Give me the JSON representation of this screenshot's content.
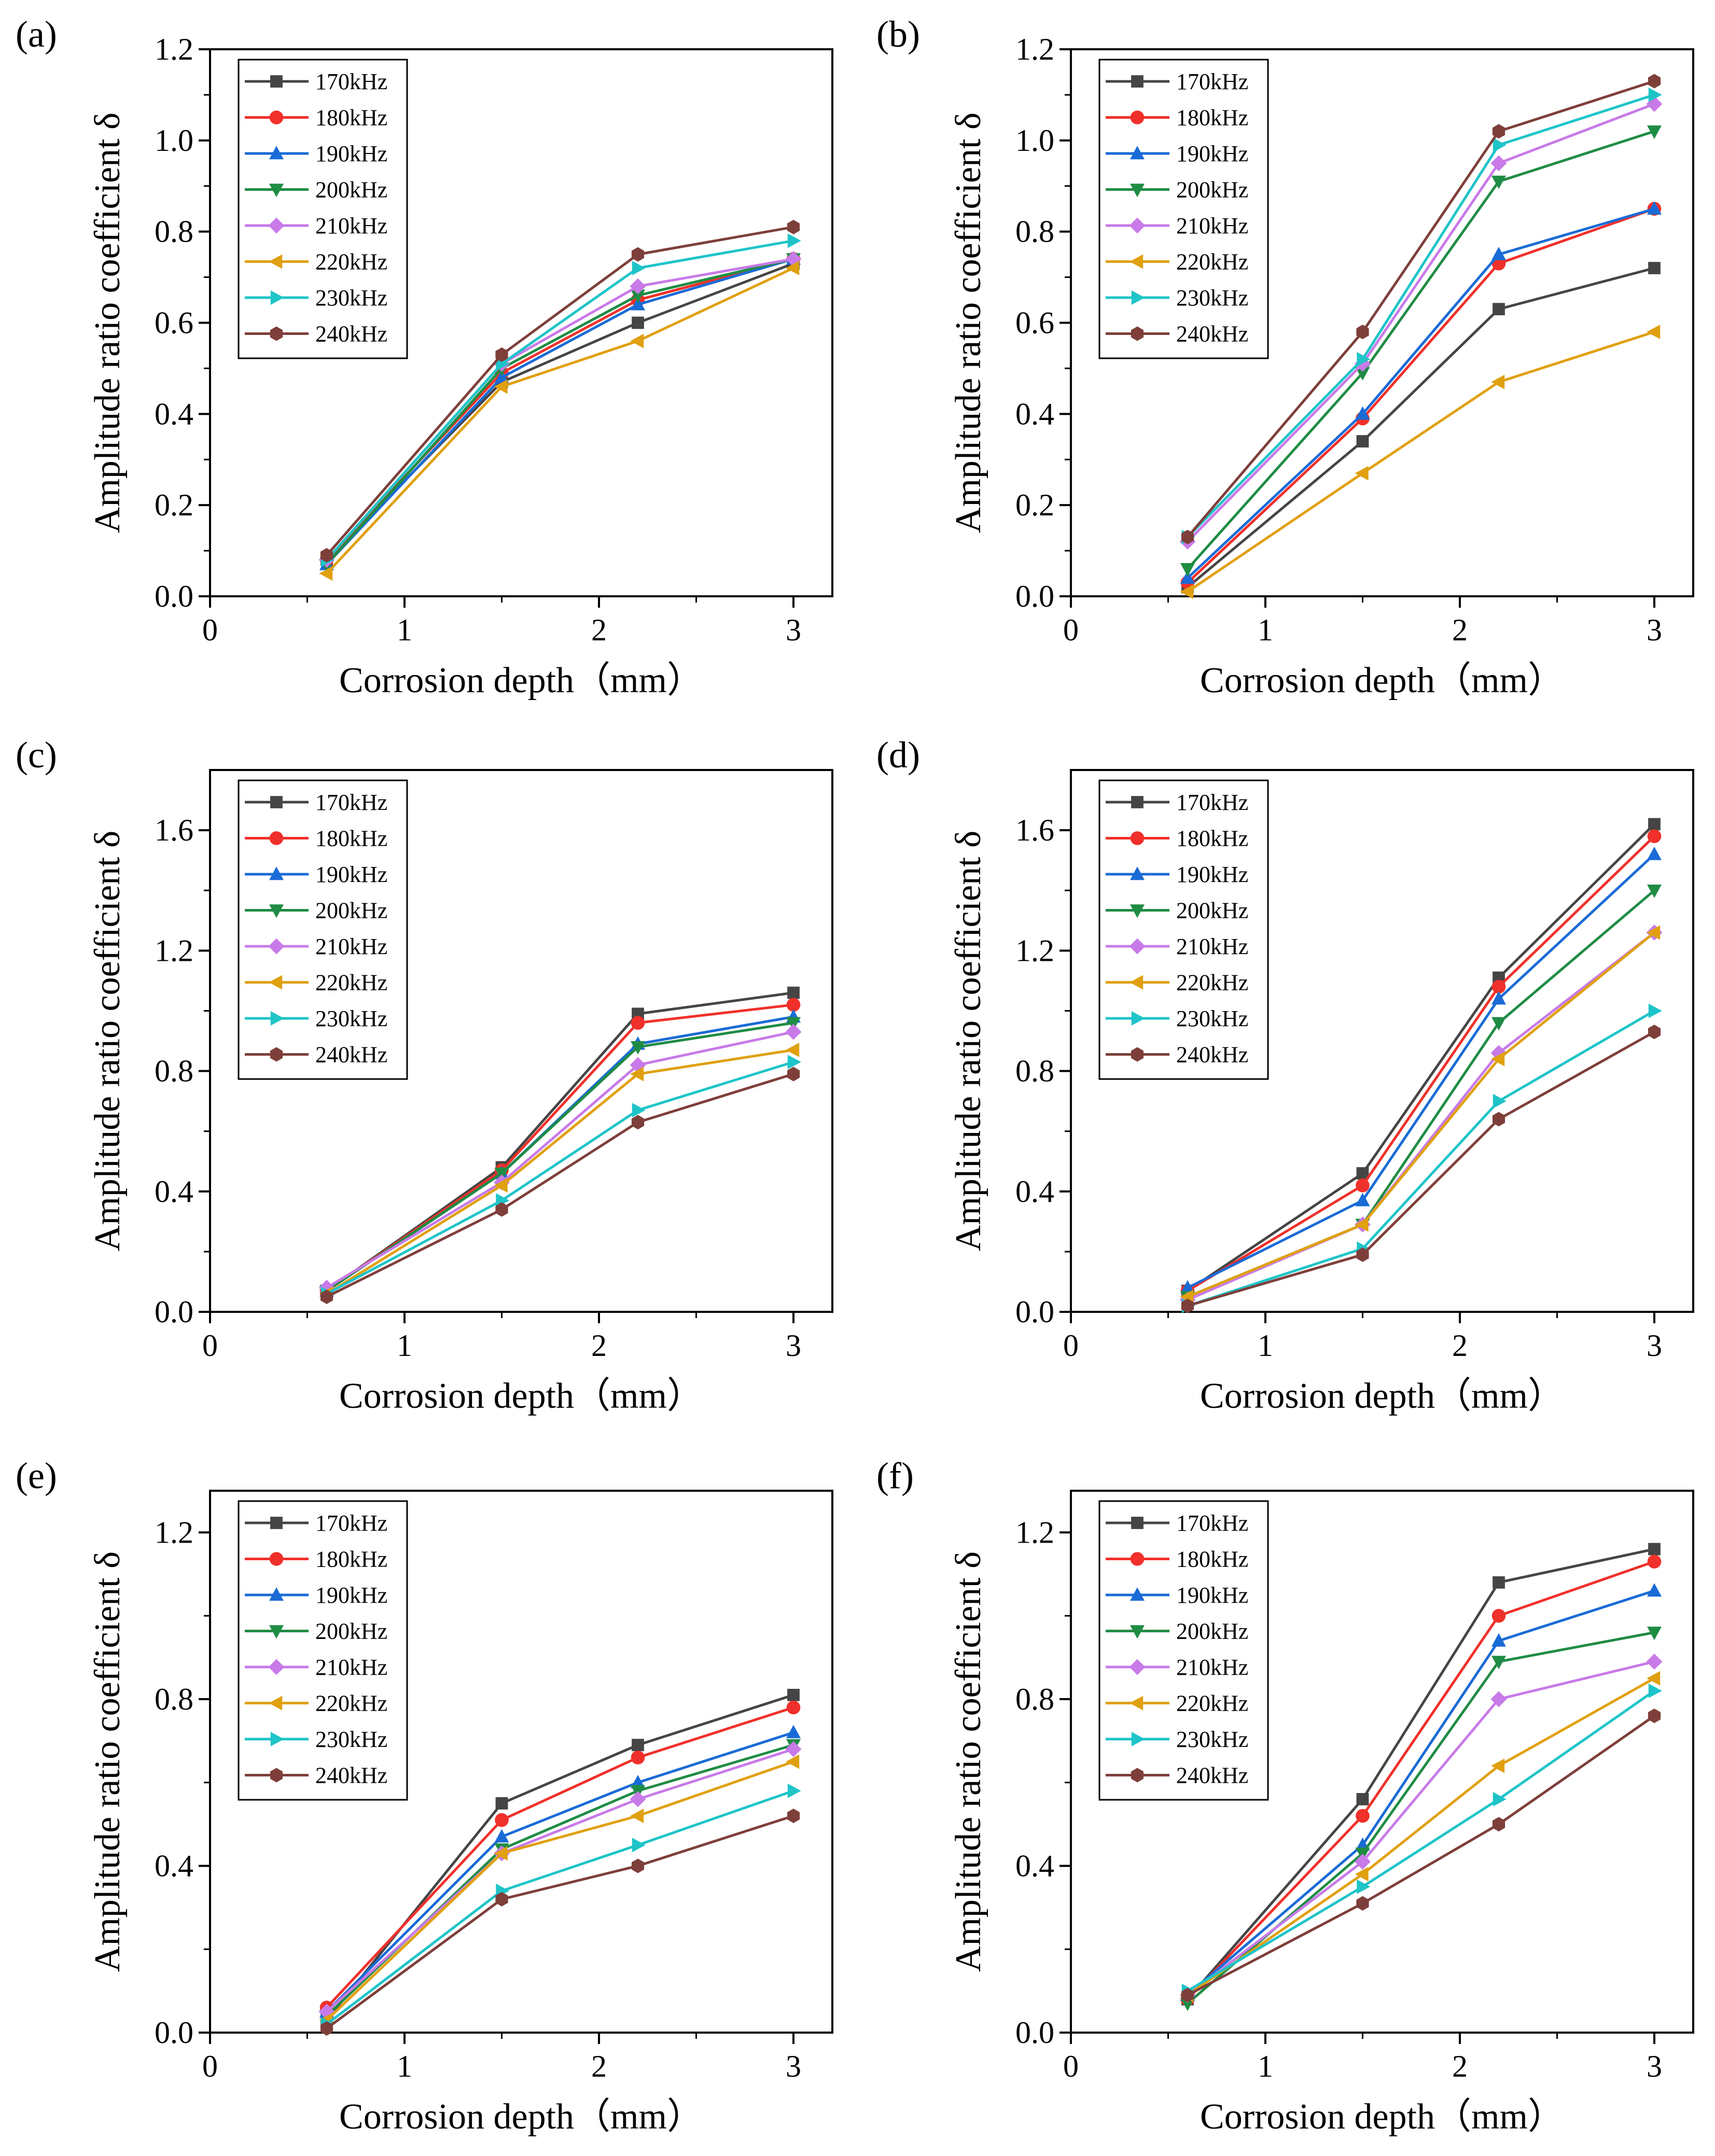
{
  "figure": {
    "xlabel": "Corrosion depth（mm）",
    "ylabel": "Amplitude ratio coefficient δ"
  },
  "series_colors": [
    "#454545",
    "#f0302a",
    "#1a6bd6",
    "#1f8c44",
    "#c87ae8",
    "#e0a010",
    "#1ec4c8",
    "#7e3f3a"
  ],
  "series_markers": [
    "square",
    "circle",
    "triangle-up",
    "triangle-down",
    "diamond",
    "triangle-left",
    "triangle-right",
    "hexagon"
  ],
  "legend_labels": [
    "170kHz",
    "180kHz",
    "190kHz",
    "200kHz",
    "210kHz",
    "220kHz",
    "230kHz",
    "240kHz"
  ],
  "chart_data": [
    {
      "panel": "(a)",
      "type": "line",
      "x": [
        0.6,
        1.5,
        2.2,
        3.0
      ],
      "xlim": [
        0,
        3.2
      ],
      "xticks": [
        "0",
        "1",
        "2",
        "3"
      ],
      "xtick_values": [
        0,
        1,
        2,
        3
      ],
      "ylim": [
        0,
        1.2
      ],
      "yticks": [
        "0.0",
        "0.2",
        "0.4",
        "0.6",
        "0.8",
        "1.0",
        "1.2"
      ],
      "ytick_values": [
        0,
        0.2,
        0.4,
        0.6,
        0.8,
        1.0,
        1.2
      ],
      "xlabel": "Corrosion depth（mm）",
      "ylabel": "Amplitude ratio coefficient δ",
      "series": [
        {
          "name": "170kHz",
          "values": [
            0.08,
            0.47,
            0.6,
            0.73
          ]
        },
        {
          "name": "180kHz",
          "values": [
            0.08,
            0.49,
            0.65,
            0.74
          ]
        },
        {
          "name": "190kHz",
          "values": [
            0.07,
            0.48,
            0.64,
            0.74
          ]
        },
        {
          "name": "200kHz",
          "values": [
            0.07,
            0.5,
            0.66,
            0.74
          ]
        },
        {
          "name": "210kHz",
          "values": [
            0.08,
            0.51,
            0.68,
            0.74
          ]
        },
        {
          "name": "220kHz",
          "values": [
            0.05,
            0.46,
            0.56,
            0.72
          ]
        },
        {
          "name": "230kHz",
          "values": [
            0.08,
            0.51,
            0.72,
            0.78
          ]
        },
        {
          "name": "240kHz",
          "values": [
            0.09,
            0.53,
            0.75,
            0.81
          ]
        }
      ]
    },
    {
      "panel": "(b)",
      "type": "line",
      "x": [
        0.6,
        1.5,
        2.2,
        3.0
      ],
      "xlim": [
        0,
        3.2
      ],
      "xticks": [
        "0",
        "1",
        "2",
        "3"
      ],
      "xtick_values": [
        0,
        1,
        2,
        3
      ],
      "ylim": [
        0,
        1.2
      ],
      "yticks": [
        "0.0",
        "0.2",
        "0.4",
        "0.6",
        "0.8",
        "1.0",
        "1.2"
      ],
      "ytick_values": [
        0,
        0.2,
        0.4,
        0.6,
        0.8,
        1.0,
        1.2
      ],
      "xlabel": "Corrosion depth（mm）",
      "ylabel": "Amplitude ratio coefficient δ",
      "series": [
        {
          "name": "170kHz",
          "values": [
            0.02,
            0.34,
            0.63,
            0.72
          ]
        },
        {
          "name": "180kHz",
          "values": [
            0.03,
            0.39,
            0.73,
            0.85
          ]
        },
        {
          "name": "190kHz",
          "values": [
            0.04,
            0.4,
            0.75,
            0.85
          ]
        },
        {
          "name": "200kHz",
          "values": [
            0.06,
            0.49,
            0.91,
            1.02
          ]
        },
        {
          "name": "210kHz",
          "values": [
            0.12,
            0.51,
            0.95,
            1.08
          ]
        },
        {
          "name": "220kHz",
          "values": [
            0.01,
            0.27,
            0.47,
            0.58
          ]
        },
        {
          "name": "230kHz",
          "values": [
            0.13,
            0.52,
            0.99,
            1.1
          ]
        },
        {
          "name": "240kHz",
          "values": [
            0.13,
            0.58,
            1.02,
            1.13
          ]
        }
      ]
    },
    {
      "panel": "(c)",
      "type": "line",
      "x": [
        0.6,
        1.5,
        2.2,
        3.0
      ],
      "xlim": [
        0,
        3.2
      ],
      "xticks": [
        "0",
        "1",
        "2",
        "3"
      ],
      "xtick_values": [
        0,
        1,
        2,
        3
      ],
      "ylim": [
        0,
        1.8
      ],
      "yticks": [
        "0.0",
        "0.4",
        "0.8",
        "1.2",
        "1.6"
      ],
      "ytick_values": [
        0,
        0.4,
        0.8,
        1.2,
        1.6
      ],
      "xlabel": "Corrosion depth（mm）",
      "ylabel": "Amplitude ratio coefficient δ",
      "series": [
        {
          "name": "170kHz",
          "values": [
            0.07,
            0.48,
            0.99,
            1.06
          ]
        },
        {
          "name": "180kHz",
          "values": [
            0.07,
            0.47,
            0.96,
            1.02
          ]
        },
        {
          "name": "190kHz",
          "values": [
            0.07,
            0.46,
            0.89,
            0.98
          ]
        },
        {
          "name": "200kHz",
          "values": [
            0.07,
            0.46,
            0.88,
            0.96
          ]
        },
        {
          "name": "210kHz",
          "values": [
            0.08,
            0.43,
            0.82,
            0.93
          ]
        },
        {
          "name": "220kHz",
          "values": [
            0.06,
            0.42,
            0.79,
            0.87
          ]
        },
        {
          "name": "230kHz",
          "values": [
            0.06,
            0.37,
            0.67,
            0.83
          ]
        },
        {
          "name": "240kHz",
          "values": [
            0.05,
            0.34,
            0.63,
            0.79
          ]
        }
      ]
    },
    {
      "panel": "(d)",
      "type": "line",
      "x": [
        0.6,
        1.5,
        2.2,
        3.0
      ],
      "xlim": [
        0,
        3.2
      ],
      "xticks": [
        "0",
        "1",
        "2",
        "3"
      ],
      "xtick_values": [
        0,
        1,
        2,
        3
      ],
      "ylim": [
        0,
        1.8
      ],
      "yticks": [
        "0.0",
        "0.4",
        "0.8",
        "1.2",
        "1.6"
      ],
      "ytick_values": [
        0,
        0.4,
        0.8,
        1.2,
        1.6
      ],
      "xlabel": "Corrosion depth（mm）",
      "ylabel": "Amplitude ratio coefficient δ",
      "series": [
        {
          "name": "170kHz",
          "values": [
            0.07,
            0.46,
            1.11,
            1.62
          ]
        },
        {
          "name": "180kHz",
          "values": [
            0.07,
            0.42,
            1.08,
            1.58
          ]
        },
        {
          "name": "190kHz",
          "values": [
            0.08,
            0.37,
            1.04,
            1.52
          ]
        },
        {
          "name": "200kHz",
          "values": [
            0.05,
            0.29,
            0.96,
            1.4
          ]
        },
        {
          "name": "210kHz",
          "values": [
            0.04,
            0.29,
            0.86,
            1.26
          ]
        },
        {
          "name": "220kHz",
          "values": [
            0.05,
            0.29,
            0.84,
            1.26
          ]
        },
        {
          "name": "230kHz",
          "values": [
            0.02,
            0.21,
            0.7,
            1.0
          ]
        },
        {
          "name": "240kHz",
          "values": [
            0.02,
            0.19,
            0.64,
            0.93
          ]
        }
      ]
    },
    {
      "panel": "(e)",
      "type": "line",
      "x": [
        0.6,
        1.5,
        2.2,
        3.0
      ],
      "xlim": [
        0,
        3.2
      ],
      "xticks": [
        "0",
        "1",
        "2",
        "3"
      ],
      "xtick_values": [
        0,
        1,
        2,
        3
      ],
      "ylim": [
        0,
        1.3
      ],
      "yticks": [
        "0.0",
        "0.4",
        "0.8",
        "1.2"
      ],
      "ytick_values": [
        0,
        0.4,
        0.8,
        1.2
      ],
      "xlabel": "Corrosion depth（mm）",
      "ylabel": "Amplitude ratio coefficient δ",
      "series": [
        {
          "name": "170kHz",
          "values": [
            0.03,
            0.55,
            0.69,
            0.81
          ]
        },
        {
          "name": "180kHz",
          "values": [
            0.06,
            0.51,
            0.66,
            0.78
          ]
        },
        {
          "name": "190kHz",
          "values": [
            0.05,
            0.47,
            0.6,
            0.72
          ]
        },
        {
          "name": "200kHz",
          "values": [
            0.04,
            0.44,
            0.58,
            0.69
          ]
        },
        {
          "name": "210kHz",
          "values": [
            0.05,
            0.43,
            0.56,
            0.68
          ]
        },
        {
          "name": "220kHz",
          "values": [
            0.03,
            0.43,
            0.52,
            0.65
          ]
        },
        {
          "name": "230kHz",
          "values": [
            0.02,
            0.34,
            0.45,
            0.58
          ]
        },
        {
          "name": "240kHz",
          "values": [
            0.01,
            0.32,
            0.4,
            0.52
          ]
        }
      ]
    },
    {
      "panel": "(f)",
      "type": "line",
      "x": [
        0.6,
        1.5,
        2.2,
        3.0
      ],
      "xlim": [
        0,
        3.2
      ],
      "xticks": [
        "0",
        "1",
        "2",
        "3"
      ],
      "xtick_values": [
        0,
        1,
        2,
        3
      ],
      "ylim": [
        0,
        1.3
      ],
      "yticks": [
        "0.0",
        "0.4",
        "0.8",
        "1.2"
      ],
      "ytick_values": [
        0,
        0.4,
        0.8,
        1.2
      ],
      "xlabel": "Corrosion depth（mm）",
      "ylabel": "Amplitude ratio coefficient δ",
      "series": [
        {
          "name": "170kHz",
          "values": [
            0.08,
            0.56,
            1.08,
            1.16
          ]
        },
        {
          "name": "180kHz",
          "values": [
            0.08,
            0.52,
            1.0,
            1.13
          ]
        },
        {
          "name": "190kHz",
          "values": [
            0.09,
            0.45,
            0.94,
            1.06
          ]
        },
        {
          "name": "200kHz",
          "values": [
            0.07,
            0.43,
            0.89,
            0.96
          ]
        },
        {
          "name": "210kHz",
          "values": [
            0.09,
            0.41,
            0.8,
            0.89
          ]
        },
        {
          "name": "220kHz",
          "values": [
            0.09,
            0.38,
            0.64,
            0.85
          ]
        },
        {
          "name": "230kHz",
          "values": [
            0.1,
            0.35,
            0.56,
            0.82
          ]
        },
        {
          "name": "240kHz",
          "values": [
            0.09,
            0.31,
            0.5,
            0.76
          ]
        }
      ]
    }
  ]
}
